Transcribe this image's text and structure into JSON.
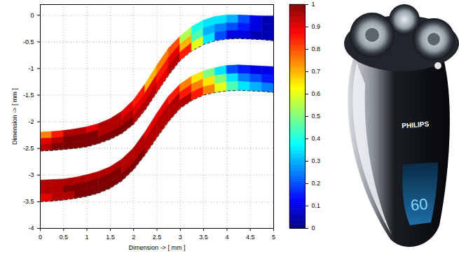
{
  "chart_data": {
    "type": "heatmap",
    "x_label": "Dimension -> [ mm ]",
    "y_label": "Dimension -> [ mm ]",
    "xlim": [
      0,
      5
    ],
    "ylim": [
      -4,
      0.2
    ],
    "xticks": [
      0,
      0.5,
      1,
      1.5,
      2,
      2.5,
      3,
      3.5,
      4,
      4.5,
      5
    ],
    "yticks": [
      -4,
      -3.5,
      -3,
      -2.5,
      -2,
      -1.5,
      -1,
      -0.5,
      0
    ],
    "grid": true,
    "x": [
      0,
      0.25,
      0.5,
      0.75,
      1,
      1.25,
      1.5,
      1.75,
      2,
      2.25,
      2.5,
      2.75,
      3,
      3.25,
      3.5,
      3.75,
      4,
      4.25,
      4.5,
      4.75,
      5
    ],
    "bands": [
      {
        "boundaries": [
          [
            -2.2,
            -2.19,
            -2.17,
            -2.14,
            -2.1,
            -2.04,
            -1.95,
            -1.81,
            -1.6,
            -1.3,
            -0.95,
            -0.63,
            -0.4,
            -0.22,
            -0.1,
            -0.03,
            0,
            0,
            -0.01,
            -0.02,
            -0.02
          ],
          [
            -2.32,
            -2.31,
            -2.29,
            -2.26,
            -2.22,
            -2.16,
            -2.08,
            -1.95,
            -1.75,
            -1.46,
            -1.12,
            -0.8,
            -0.55,
            -0.37,
            -0.25,
            -0.18,
            -0.15,
            -0.15,
            -0.16,
            -0.17,
            -0.17
          ],
          [
            -2.43,
            -2.42,
            -2.4,
            -2.38,
            -2.35,
            -2.29,
            -2.2,
            -2.08,
            -1.9,
            -1.62,
            -1.28,
            -0.96,
            -0.7,
            -0.52,
            -0.4,
            -0.33,
            -0.3,
            -0.29,
            -0.3,
            -0.31,
            -0.33
          ],
          [
            -2.55,
            -2.54,
            -2.52,
            -2.5,
            -2.47,
            -2.41,
            -2.33,
            -2.22,
            -2.05,
            -1.78,
            -1.45,
            -1.13,
            -0.85,
            -0.67,
            -0.55,
            -0.48,
            -0.45,
            -0.44,
            -0.45,
            -0.46,
            -0.48
          ]
        ],
        "values": [
          [
            0.75,
            0.85,
            0.95,
            0.95,
            0.9,
            0.95,
            0.95,
            0.9,
            0.85,
            0.7,
            0.75,
            0.8,
            0.55,
            0.4,
            0.35,
            0.35,
            0.3,
            0.2,
            0.1,
            0.05
          ],
          [
            0.9,
            0.95,
            1,
            1,
            1,
            0.95,
            0.95,
            0.95,
            0.9,
            0.9,
            0.85,
            0.9,
            0.7,
            0.45,
            0.3,
            0.25,
            0.2,
            0.15,
            0.1,
            0.05
          ],
          [
            0.95,
            1,
            1,
            1,
            1,
            1,
            1,
            1,
            0.95,
            0.95,
            0.9,
            0.95,
            0.85,
            0.6,
            0.35,
            0.2,
            0.1,
            0.1,
            0.05,
            0.05
          ]
        ]
      },
      {
        "boundaries": [
          [
            -3.1,
            -3.09,
            -3.08,
            -3.05,
            -3.0,
            -2.94,
            -2.85,
            -2.71,
            -2.5,
            -2.2,
            -1.85,
            -1.53,
            -1.3,
            -1.15,
            -1.05,
            -0.99,
            -0.95,
            -0.94,
            -0.95,
            -0.96,
            -0.97
          ],
          [
            -3.23,
            -3.22,
            -3.21,
            -3.18,
            -3.13,
            -3.07,
            -2.98,
            -2.84,
            -2.63,
            -2.34,
            -2.0,
            -1.69,
            -1.45,
            -1.3,
            -1.2,
            -1.14,
            -1.11,
            -1.1,
            -1.11,
            -1.12,
            -1.13
          ],
          [
            -3.37,
            -3.36,
            -3.34,
            -3.31,
            -3.27,
            -3.21,
            -3.12,
            -2.98,
            -2.77,
            -2.48,
            -2.15,
            -1.84,
            -1.6,
            -1.45,
            -1.35,
            -1.3,
            -1.26,
            -1.25,
            -1.26,
            -1.27,
            -1.29
          ],
          [
            -3.5,
            -3.49,
            -3.47,
            -3.44,
            -3.4,
            -3.34,
            -3.25,
            -3.11,
            -2.9,
            -2.62,
            -2.3,
            -2.0,
            -1.75,
            -1.6,
            -1.5,
            -1.45,
            -1.42,
            -1.41,
            -1.42,
            -1.43,
            -1.45
          ]
        ],
        "values": [
          [
            0.95,
            0.95,
            0.95,
            0.95,
            0.95,
            0.95,
            0.95,
            0.95,
            0.95,
            0.9,
            0.9,
            0.85,
            0.75,
            0.65,
            0.5,
            0.35,
            0.2,
            0.15,
            0.1,
            0.1
          ],
          [
            0.95,
            0.95,
            1,
            1,
            1,
            1,
            1,
            0.95,
            0.95,
            0.95,
            0.95,
            0.95,
            0.85,
            0.75,
            0.65,
            0.5,
            0.35,
            0.25,
            0.2,
            0.15
          ],
          [
            0.9,
            0.95,
            0.95,
            1,
            1,
            1,
            1,
            1,
            1,
            0.95,
            0.95,
            0.95,
            0.95,
            0.85,
            0.75,
            0.6,
            0.45,
            0.35,
            0.3,
            0.25
          ]
        ]
      }
    ],
    "colorbar": {
      "range": [
        0,
        1
      ],
      "ticks": [
        0,
        0.1,
        0.2,
        0.3,
        0.4,
        0.5,
        0.6,
        0.7,
        0.8,
        0.9,
        1
      ]
    }
  },
  "illustration": {
    "brand": "PHILIPS",
    "display": "60"
  }
}
